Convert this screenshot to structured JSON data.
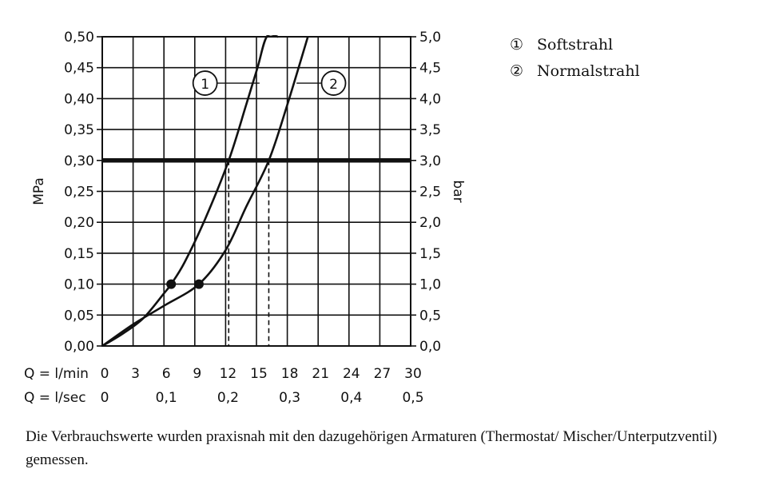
{
  "chart_data": {
    "type": "line",
    "x_unit_label_primary": "Q = l/min",
    "x_unit_label_secondary": "Q = l/sec",
    "x_ticks_lmin": [
      "0",
      "3",
      "6",
      "9",
      "12",
      "15",
      "18",
      "21",
      "24",
      "27",
      "30"
    ],
    "x_ticks_lsec": [
      "0",
      "0,1",
      "0,2",
      "0,3",
      "0,4",
      "0,5"
    ],
    "xlim": [
      0,
      30
    ],
    "ylim": [
      0,
      0.5
    ],
    "ylabel_left": "MPa",
    "ylabel_right": "bar",
    "y_ticks_left": [
      "0,00",
      "0,05",
      "0,10",
      "0,15",
      "0,20",
      "0,25",
      "0,30",
      "0,35",
      "0,40",
      "0,45",
      "0,50"
    ],
    "y_ticks_right": [
      "0,0",
      "0,5",
      "1,0",
      "1,5",
      "2,0",
      "2,5",
      "3,0",
      "3,5",
      "4,0",
      "4,5",
      "5,0"
    ],
    "grid": true,
    "reference_line": {
      "y": 0.3
    },
    "series": [
      {
        "marker": "1",
        "x": [
          0,
          2,
          4,
          6,
          6.7,
          8,
          10,
          12.3,
          14,
          15.1,
          16,
          17.1
        ],
        "y": [
          0,
          0.02,
          0.045,
          0.085,
          0.1,
          0.135,
          0.205,
          0.3,
          0.39,
          0.45,
          0.5,
          0.5
        ],
        "drop_at_x": 12.3,
        "point": {
          "x": 6.7,
          "y": 0.1
        },
        "label_at": {
          "x": 10,
          "y": 0.425
        }
      },
      {
        "marker": "2",
        "x": [
          0,
          3,
          6,
          9.4,
          12,
          14,
          16.2,
          18,
          20
        ],
        "y": [
          0,
          0.035,
          0.065,
          0.1,
          0.155,
          0.225,
          0.3,
          0.39,
          0.5
        ],
        "drop_at_x": 16.2,
        "point": {
          "x": 9.4,
          "y": 0.1
        },
        "label_at": {
          "x": 22.5,
          "y": 0.425
        }
      }
    ]
  },
  "legend": [
    {
      "marker": "①",
      "label": "Softstrahl"
    },
    {
      "marker": "②",
      "label": "Normalstrahl"
    }
  ],
  "note": "Die Verbrauchswerte wurden praxisnah mit den dazugehörigen Armaturen (Thermostat/ Mischer/Unterputzventil) gemessen."
}
